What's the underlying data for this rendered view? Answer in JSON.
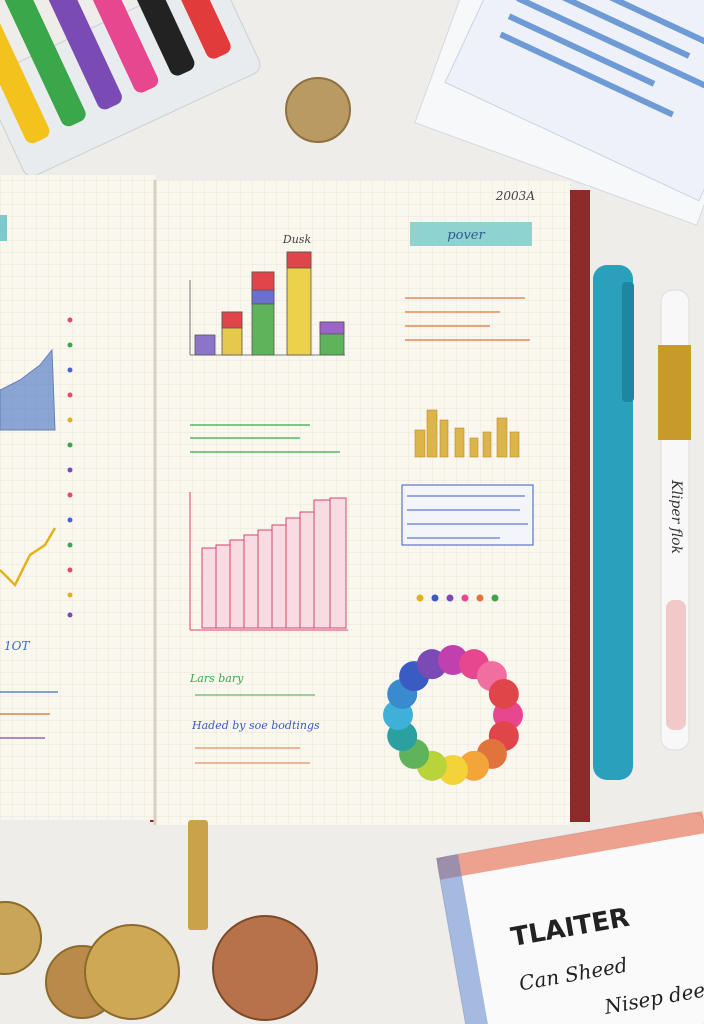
{
  "notebook": {
    "right_page": {
      "date": "2003A",
      "chart_title": "Dusk",
      "tab_label": "pover",
      "notes": [
        "Lars bary",
        "Haded by soe bodtings"
      ]
    },
    "left_page": {
      "label": "1OT"
    }
  },
  "pen": {
    "label": "Kliper flok"
  },
  "card": {
    "title": "TLAITER",
    "lines": [
      "Can Sheed",
      "Nisep deez"
    ]
  }
}
